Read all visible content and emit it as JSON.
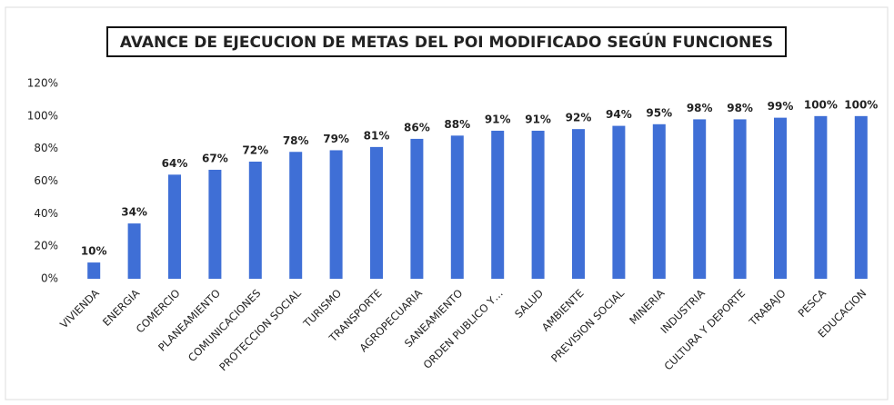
{
  "chart_data": {
    "type": "bar",
    "title": "AVANCE DE EJECUCION DE METAS DEL POI MODIFICADO SEGÚN FUNCIONES",
    "categories": [
      "VIVIENDA",
      "ENERGIA",
      "COMERCIO",
      "PLANEAMIENTO",
      "COMUNICACIONES",
      "PROTECCION SOCIAL",
      "TURISMO",
      "TRANSPORTE",
      "AGROPECUARIA",
      "SANEAMIENTO",
      "ORDEN PUBLICO Y…",
      "SALUD",
      "AMBIENTE",
      "PREVISION SOCIAL",
      "MINERIA",
      "INDUSTRIA",
      "CULTURA Y DEPORTE",
      "TRABAJO",
      "PESCA",
      "EDUCACION"
    ],
    "values": [
      10,
      34,
      64,
      67,
      72,
      78,
      79,
      81,
      86,
      88,
      91,
      91,
      92,
      94,
      95,
      98,
      98,
      99,
      100,
      100
    ],
    "value_labels": [
      "10%",
      "34%",
      "64%",
      "67%",
      "72%",
      "78%",
      "79%",
      "81%",
      "86%",
      "88%",
      "91%",
      "91%",
      "92%",
      "94%",
      "95%",
      "98%",
      "98%",
      "99%",
      "100%",
      "100%"
    ],
    "color": "#3f6fd6",
    "ylim": [
      0,
      120
    ],
    "yticks": [
      {
        "value": 0,
        "label": "0%"
      },
      {
        "value": 20,
        "label": "20%"
      },
      {
        "value": 40,
        "label": "40%"
      },
      {
        "value": 60,
        "label": "60%"
      },
      {
        "value": 80,
        "label": "80%"
      },
      {
        "value": 100,
        "label": "100%"
      },
      {
        "value": 120,
        "label": "120%"
      }
    ],
    "grid": false
  }
}
